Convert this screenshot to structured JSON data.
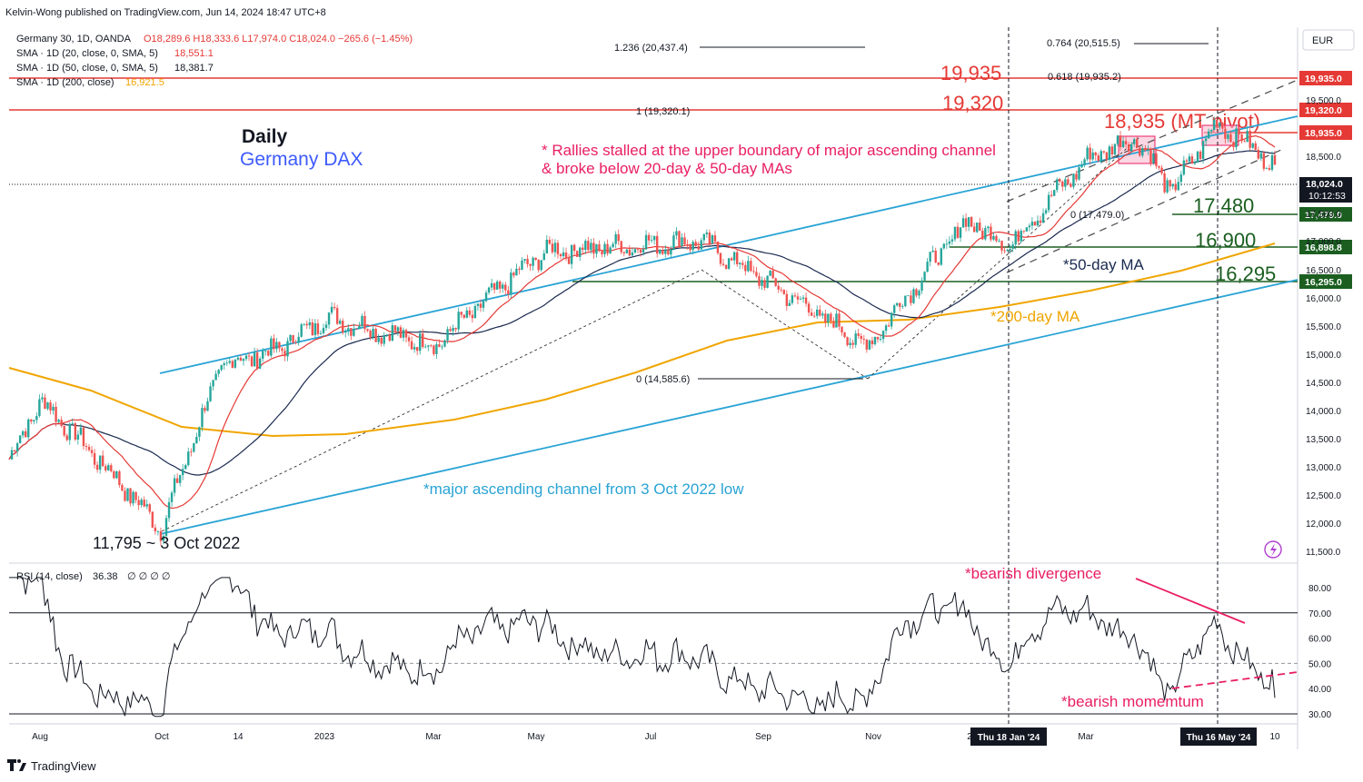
{
  "publisher": "Kelvin-Wong published on TradingView.com, Jun 14, 2024 18:47 UTC+8",
  "legend": {
    "symbol": "Germany 30, 1D, OANDA",
    "ohlc": "O18,289.6  H18,333.6  L17,974.0  C18,024.0  −265.6 (−1.45%)",
    "sma20_label": "SMA · 1D (20, close, 0, SMA, 5)",
    "sma20_value": "18,551.1",
    "sma50_label": "SMA · 1D (50, close, 0, SMA, 5)",
    "sma50_value": "18,381.7",
    "sma200_label": "SMA · 1D (200, close)",
    "sma200_value": "16,921.5"
  },
  "currency": "EUR",
  "titles": {
    "daily": "Daily",
    "name": "Germany DAX"
  },
  "annotations": {
    "rallies_line1": "* Rallies stalled at the upper boundary of major ascending channel",
    "rallies_line2": "& broke below 20-day & 50-day MAs",
    "channel": "*major ascending channel from 3 Oct 2022 low",
    "low": "11,795 ~ 3 Oct 2022",
    "ma50": "*50-day MA",
    "ma200": "*200-day MA",
    "bearish_divergence": "*bearish divergence",
    "bearish_momentum": "*bearish momemtum"
  },
  "levels": [
    {
      "big": "19,935",
      "tag": "19,935.0",
      "color": "#e53935",
      "kind": "resistance"
    },
    {
      "big": "19,320",
      "tag": "19,320.0",
      "color": "#e53935",
      "kind": "resistance"
    },
    {
      "big": "18,935 (MT pivot)",
      "tag": "18,935.0",
      "color": "#e53935",
      "kind": "pivot"
    },
    {
      "big": "17,480",
      "tag": "17,479.0",
      "color": "#1b5e20",
      "kind": "support"
    },
    {
      "big": "16,900",
      "tag": "16,898.8",
      "color": "#1b5e20",
      "kind": "support"
    },
    {
      "big": "16,295",
      "tag": "16,295.0",
      "color": "#1b5e20",
      "kind": "support"
    }
  ],
  "fib_labels": {
    "f1236": "1.236 (20,437.4)",
    "f0764": "0.764 (20,515.5)",
    "f0618": "0.618 (19,935.2)",
    "f1": "1 (19,320.1)",
    "f0_low": "0 (17,479.0)",
    "f0": "0 (14,585.6)"
  },
  "last_price": {
    "value": "18,024.0",
    "countdown": "10:12:53"
  },
  "y_axis_ticks": [
    "19,500.0",
    "18,500.0",
    "17,500.0",
    "17,000.0",
    "16,500.0",
    "16,000.0",
    "15,500.0",
    "15,000.0",
    "14,500.0",
    "14,000.0",
    "13,500.0",
    "13,000.0",
    "12,500.0",
    "12,000.0",
    "11,500.0"
  ],
  "rsi": {
    "label": "RSI (14, close)",
    "value": "36.38",
    "extras": "∅ ∅ ∅ ∅",
    "ticks": [
      "80.00",
      "70.00",
      "60.00",
      "50.00",
      "40.00",
      "30.00"
    ]
  },
  "x_axis_ticks": [
    "Aug",
    "Oct",
    "14",
    "2023",
    "Mar",
    "May",
    "Jul",
    "Sep",
    "Nov",
    "2",
    "Mar",
    "10"
  ],
  "x_highlights": [
    "Thu 18 Jan '24",
    "Thu 16 May '24"
  ],
  "brand": "TradingView",
  "chart_data": {
    "type": "candlestick",
    "instrument": "Germany 30",
    "timeframe": "1D",
    "ylim": [
      11400,
      19950
    ],
    "price_path_anchors": [
      {
        "x": "Jul 2022",
        "y": 12800
      },
      {
        "x": "Aug 2022",
        "y": 13700
      },
      {
        "x": "3 Oct 2022",
        "y": 11795
      },
      {
        "x": "Nov 2022",
        "y": 14300
      },
      {
        "x": "Dec 2022",
        "y": 14500
      },
      {
        "x": "Jan 2023",
        "y": 15100
      },
      {
        "x": "Mar 2023",
        "y": 14600
      },
      {
        "x": "May 2023",
        "y": 16300
      },
      {
        "x": "Jun 2023",
        "y": 16400
      },
      {
        "x": "Jul 2023",
        "y": 16500
      },
      {
        "x": "Oct 2023",
        "y": 14585.6
      },
      {
        "x": "Dec 2023",
        "y": 16900
      },
      {
        "x": "Thu 18 Jan '24",
        "y": 16400
      },
      {
        "x": "Mar 2024",
        "y": 18200
      },
      {
        "x": "Apr 2024",
        "y": 18600
      },
      {
        "x": "Apr 2024 pullback",
        "y": 17479
      },
      {
        "x": "Thu 16 May '24",
        "y": 18935
      },
      {
        "x": "14 Jun 2024",
        "y": 18024
      }
    ],
    "rsi_ylim": [
      28,
      86
    ],
    "rsi_levels": [
      30,
      50,
      70
    ]
  }
}
